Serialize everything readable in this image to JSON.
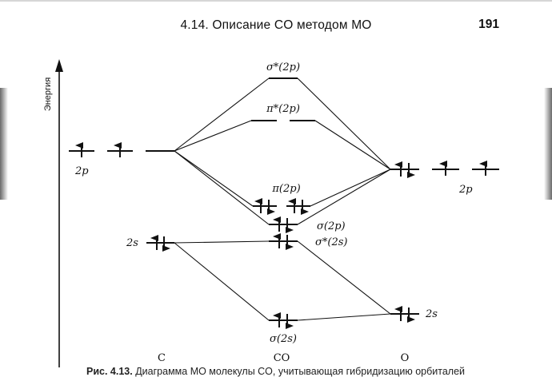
{
  "header": {
    "title": "4.14. Описание CO методом МО",
    "page_number": "191"
  },
  "diagram": {
    "axis_label": "Энергия",
    "atom_labels": {
      "left": "C",
      "middle": "CO",
      "right": "O"
    },
    "levels": {
      "c_2p": {
        "label": "2p",
        "electrons": [
          1,
          1,
          0
        ]
      },
      "c_2s": {
        "label": "2s",
        "electrons": 2
      },
      "o_2p": {
        "label": "2p",
        "electrons": [
          2,
          1,
          1
        ]
      },
      "o_2s": {
        "label": "2s",
        "electrons": 2
      },
      "sigma_star_2p": {
        "label": "σ*(2p)",
        "electrons": 0
      },
      "pi_star_2p": {
        "label": "π*(2p)",
        "electrons": 0
      },
      "pi_2p": {
        "label": "π(2p)",
        "electrons": [
          2,
          2
        ]
      },
      "sigma_2p": {
        "label": "σ(2p)",
        "electrons": 2
      },
      "sigma_star_2s": {
        "label": "σ*(2s)",
        "electrons": 2
      },
      "sigma_2s": {
        "label": "σ(2s)",
        "electrons": 2
      }
    }
  },
  "caption": {
    "prefix": "Рис. 4.13.",
    "text": "Диаграмма МО молекулы CO, учитывающая гибридизацию орбиталей"
  }
}
